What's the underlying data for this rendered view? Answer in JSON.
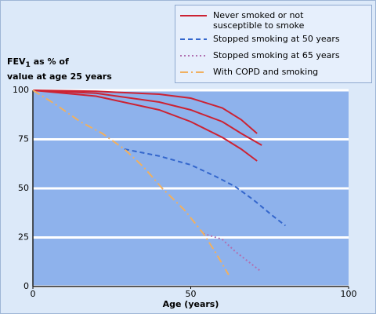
{
  "chart_data": {
    "type": "line",
    "ylabel": {
      "text": "FEV",
      "sub": "1",
      "rest": " as % of",
      "line2": "value at age 25 years"
    },
    "xlabel": "Age (years)",
    "xlim": [
      0,
      100
    ],
    "xticks": [
      0,
      50,
      100
    ],
    "ylim": [
      0,
      100
    ],
    "yticks": [
      0,
      25,
      50,
      75,
      100
    ],
    "grid": true,
    "series": [
      {
        "name": "Never smoked or not susceptible to smoke",
        "color": "#cc2233",
        "dash": "none",
        "lines": [
          {
            "x": [
              0,
              20,
              40,
              50,
              60,
              66,
              71
            ],
            "values": [
              100,
              99.5,
              98,
              96,
              91,
              85,
              78
            ]
          },
          {
            "x": [
              0,
              20,
              40,
              50,
              60,
              66,
              72.5
            ],
            "values": [
              100,
              98.5,
              94,
              90,
              84,
              78,
              72
            ]
          },
          {
            "x": [
              0,
              20,
              40,
              50,
              60,
              66,
              71
            ],
            "values": [
              100,
              97,
              90,
              84,
              76,
              70,
              64
            ]
          }
        ]
      },
      {
        "name": "Stopped smoking at 50 years",
        "color": "#3366cc",
        "dash": "6,4",
        "lines": [
          {
            "x": [
              29,
              40,
              50,
              58,
              64,
              70,
              76,
              80
            ],
            "values": [
              70,
              66.5,
              62,
              56,
              51,
              44,
              36,
              31
            ]
          }
        ]
      },
      {
        "name": "Stopped smoking at 65 years",
        "color": "#b070b0",
        "dash": "2,3",
        "lines": [
          {
            "x": [
              54,
              60,
              64,
              68,
              72
            ],
            "values": [
              27,
              24,
              18,
              13,
              8
            ]
          }
        ]
      },
      {
        "name": "With COPD and smoking",
        "color": "#f0b060",
        "dash": "10,4,2,4",
        "lines": [
          {
            "x": [
              0,
              7,
              15,
              22,
              29,
              35,
              41,
              48,
              54,
              58,
              62
            ],
            "values": [
              100,
              93,
              84,
              78,
              70,
              61,
              50,
              39,
              27,
              17,
              6
            ]
          }
        ]
      }
    ]
  }
}
